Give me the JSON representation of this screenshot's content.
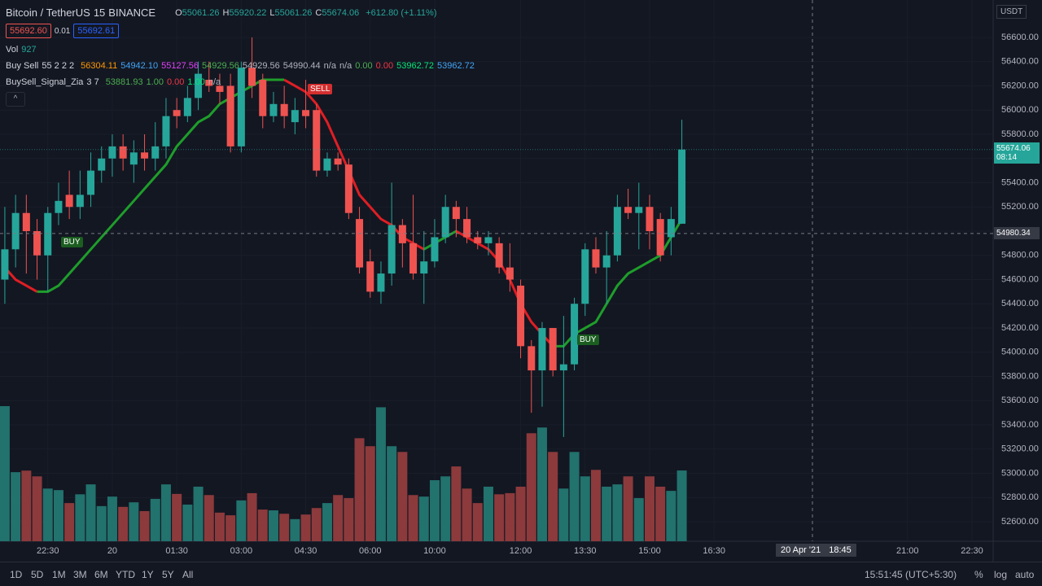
{
  "header": {
    "symbol": "Bitcoin / TetherUS",
    "interval": "15",
    "exchange": "BINANCE",
    "ohlc_labels": [
      "O",
      "H",
      "L",
      "C"
    ],
    "change": "+612.80 (+1.11%)",
    "bid": "55692.60",
    "spread": "0.01",
    "ask": "55692.61",
    "vol_label": "Vol",
    "currency": "USDT"
  },
  "indicators": [
    {
      "name": "Buy Sell",
      "params": "55 2 2 2",
      "values": [
        {
          "text": "56304.11",
          "color": "#ff9800"
        },
        {
          "text": "54942.10",
          "color": "#42a5f5"
        },
        {
          "text": "55127.56",
          "color": "#e040fb"
        },
        {
          "text": "54929.56",
          "color": "#4caf50"
        },
        {
          "text": "54929.56",
          "color": "#b2b5be"
        },
        {
          "text": "54990.44",
          "color": "#b2b5be"
        },
        {
          "text": "n/a",
          "color": "#b2b5be"
        },
        {
          "text": "n/a",
          "color": "#b2b5be"
        },
        {
          "text": "0.00",
          "color": "#4caf50"
        },
        {
          "text": "0.00",
          "color": "#f23645"
        },
        {
          "text": "53962.72",
          "color": "#00e676"
        },
        {
          "text": "53962.72",
          "color": "#42a5f5"
        }
      ]
    },
    {
      "name": "BuySell_Signal_Zia",
      "params": "3 7",
      "values": [
        {
          "text": "53881.93",
          "color": "#4caf50"
        },
        {
          "text": "1.00",
          "color": "#4caf50"
        },
        {
          "text": "0.00",
          "color": "#f23645"
        },
        {
          "text": "1.00",
          "color": "#00e676"
        },
        {
          "text": "n/a",
          "color": "#b2b5be"
        }
      ]
    }
  ],
  "annotations": [
    "SELL",
    "BUY",
    "BUY"
  ],
  "crosshair": {
    "price": 54980.34,
    "date": "20 Apr '21",
    "time": "18:45"
  },
  "countdown": "08:14",
  "toolbar": {
    "ranges": [
      "1D",
      "5D",
      "1M",
      "3M",
      "6M",
      "YTD",
      "1Y",
      "5Y",
      "All"
    ],
    "clock": "15:51:45 (UTC+5:30)",
    "options": [
      "%",
      "log",
      "auto"
    ]
  },
  "chart_data": {
    "type": "candlestick",
    "up_color": "#26a69a",
    "down_color": "#ef5350",
    "volume_up_color": "#22726d",
    "volume_down_color": "#8c3a3c",
    "line_up_color": "#1e9e2a",
    "line_down_color": "#e01e24",
    "xlim": [
      -0.45,
      91.97
    ],
    "xticks": [
      {
        "value": 4,
        "label": "22:30"
      },
      {
        "value": 10,
        "label": "20"
      },
      {
        "value": 16,
        "label": "01:30"
      },
      {
        "value": 22,
        "label": "03:00"
      },
      {
        "value": 28,
        "label": "04:30"
      },
      {
        "value": 34,
        "label": "06:00"
      },
      {
        "value": 40,
        "label": "10:00"
      },
      {
        "value": 48,
        "label": "12:00"
      },
      {
        "value": 54,
        "label": "13:30"
      },
      {
        "value": 60,
        "label": "15:00"
      },
      {
        "value": 66,
        "label": "16:30"
      },
      {
        "value": 84,
        "label": "21:00"
      },
      {
        "value": 90,
        "label": "22:30"
      }
    ],
    "ylim": [
      52439,
      56909
    ],
    "yticks": [
      {
        "value": 52600,
        "label": "52600.00"
      },
      {
        "value": 52800,
        "label": "52800.00"
      },
      {
        "value": 53000,
        "label": "53000.00"
      },
      {
        "value": 53200,
        "label": "53200.00"
      },
      {
        "value": 53400,
        "label": "53400.00"
      },
      {
        "value": 53600,
        "label": "53600.00"
      },
      {
        "value": 53800,
        "label": "53800.00"
      },
      {
        "value": 54000,
        "label": "54000.00"
      },
      {
        "value": 54200,
        "label": "54200.00"
      },
      {
        "value": 54400,
        "label": "54400.00"
      },
      {
        "value": 54600,
        "label": "54600.00"
      },
      {
        "value": 54800,
        "label": "54800.00"
      },
      {
        "value": 55000,
        "label": "55000.00"
      },
      {
        "value": 55200,
        "label": "55200.00"
      },
      {
        "value": 55400,
        "label": "55400.00"
      },
      {
        "value": 55600,
        "label": "55600.00"
      },
      {
        "value": 55800,
        "label": "55800.00"
      },
      {
        "value": 56000,
        "label": "56000.00"
      },
      {
        "value": 56200,
        "label": "56200.00"
      },
      {
        "value": 56400,
        "label": "56400.00"
      },
      {
        "value": 56600,
        "label": "56600.00"
      }
    ],
    "open": [
      54600,
      54850,
      55150,
      55000,
      54800,
      55150,
      55300,
      55200,
      55300,
      55500,
      55600,
      55700,
      55550,
      55650,
      55600,
      55700,
      56000,
      55950,
      56100,
      56250,
      56200,
      56200,
      55700,
      56350,
      56250,
      55950,
      56050,
      55900,
      56000,
      56000,
      55500,
      55600,
      55550,
      55100,
      54750,
      54500,
      54650,
      55050,
      54900,
      54650,
      54750,
      54950,
      55200,
      55100,
      54950,
      54900,
      54900,
      54700,
      54550,
      54050,
      53850,
      54200,
      53850,
      53900,
      54400,
      54850,
      54700,
      54800,
      55200,
      55150,
      55200,
      55100,
      54950,
      55061.26
    ],
    "high": [
      55200,
      55300,
      55300,
      55100,
      55200,
      55400,
      55500,
      55500,
      55650,
      55700,
      55800,
      55800,
      55750,
      55800,
      55900,
      56100,
      56100,
      56200,
      56400,
      56400,
      56300,
      56300,
      56400,
      56600,
      56300,
      56150,
      56200,
      56100,
      56250,
      56050,
      55650,
      55650,
      55600,
      55200,
      54850,
      54750,
      55400,
      55100,
      55300,
      55000,
      55100,
      55300,
      55250,
      55200,
      55000,
      55000,
      54950,
      54900,
      54600,
      54100,
      54250,
      54200,
      54300,
      54450,
      54900,
      54950,
      55000,
      55300,
      55350,
      55400,
      55300,
      55150,
      55200,
      55920.22
    ],
    "low": [
      54400,
      54700,
      54650,
      54600,
      54500,
      55050,
      55100,
      55100,
      55200,
      55400,
      55450,
      55500,
      55400,
      55500,
      55500,
      55600,
      55850,
      55900,
      56000,
      56150,
      56050,
      55650,
      55650,
      56100,
      55850,
      55900,
      55850,
      55800,
      55850,
      55450,
      55450,
      55500,
      55100,
      54650,
      54450,
      54400,
      54550,
      54700,
      54600,
      54400,
      54700,
      54900,
      54950,
      54900,
      54850,
      54800,
      54650,
      54500,
      53950,
      53500,
      53550,
      53800,
      53300,
      53850,
      54300,
      54650,
      54400,
      54750,
      55100,
      54850,
      54850,
      54750,
      54800,
      55061.26
    ],
    "close": [
      54850,
      55150,
      55000,
      54800,
      55150,
      55250,
      55200,
      55300,
      55500,
      55600,
      55700,
      55600,
      55650,
      55600,
      55700,
      55950,
      55950,
      56100,
      56300,
      56200,
      56150,
      55700,
      56350,
      56200,
      55950,
      56050,
      55950,
      56000,
      55950,
      55500,
      55600,
      55550,
      55150,
      54700,
      54500,
      54650,
      55050,
      54900,
      54650,
      54750,
      54950,
      55200,
      55100,
      54950,
      54900,
      54950,
      54700,
      54600,
      54050,
      53850,
      54200,
      53850,
      53900,
      54400,
      54850,
      54700,
      54800,
      55200,
      55150,
      55200,
      55000,
      54800,
      55100,
      55674.06
    ],
    "volume": [
      1770,
      905,
      925,
      850,
      690,
      670,
      500,
      615,
      745,
      460,
      585,
      450,
      510,
      395,
      555,
      745,
      620,
      480,
      715,
      605,
      375,
      340,
      535,
      630,
      415,
      405,
      360,
      290,
      350,
      435,
      500,
      605,
      565,
      1350,
      1245,
      1755,
      1245,
      1170,
      605,
      585,
      800,
      850,
      980,
      690,
      500,
      715,
      615,
      630,
      715,
      1415,
      1490,
      1170,
      690,
      1170,
      850,
      935,
      715,
      745,
      850,
      565,
      850,
      715,
      660,
      927
    ],
    "signal": [
      54700,
      54600,
      54550,
      54500,
      54500,
      54550,
      54650,
      54750,
      54850,
      54950,
      55050,
      55150,
      55250,
      55350,
      55450,
      55550,
      55700,
      55800,
      55900,
      55950,
      56050,
      56100,
      56150,
      56200,
      56250,
      56250,
      56250,
      56200,
      56150,
      56050,
      55900,
      55700,
      55500,
      55300,
      55200,
      55100,
      55050,
      54950,
      54900,
      54850,
      54900,
      54950,
      55000,
      54950,
      54900,
      54850,
      54750,
      54600,
      54400,
      54250,
      54150,
      54050,
      54050,
      54150,
      54200,
      54250,
      54400,
      54550,
      54650,
      54700,
      54750,
      54800,
      54950,
      55100
    ]
  }
}
